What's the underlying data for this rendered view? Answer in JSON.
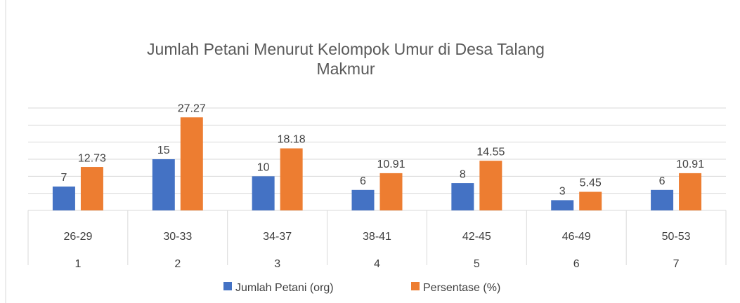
{
  "chart_data": {
    "type": "bar",
    "title": "Jumlah Petani Menurut Kelompok Umur di Desa Talang Makmur",
    "categories": [
      "26-29",
      "30-33",
      "34-37",
      "38-41",
      "42-45",
      "46-49",
      "50-53"
    ],
    "category_numbers": [
      "1",
      "2",
      "3",
      "4",
      "5",
      "6",
      "7"
    ],
    "series": [
      {
        "name": "Jumlah Petani (org)",
        "color": "#4472c4",
        "values": [
          7,
          15,
          10,
          6,
          8,
          3,
          6
        ]
      },
      {
        "name": "Persentase (%)",
        "color": "#ed7d31",
        "values": [
          12.73,
          27.27,
          18.18,
          10.91,
          14.55,
          5.45,
          10.91
        ]
      }
    ],
    "ylim": [
      0,
      30
    ],
    "yticks": [
      0,
      5,
      10,
      15,
      20,
      25,
      30
    ],
    "grid": true,
    "legend": "bottom"
  }
}
